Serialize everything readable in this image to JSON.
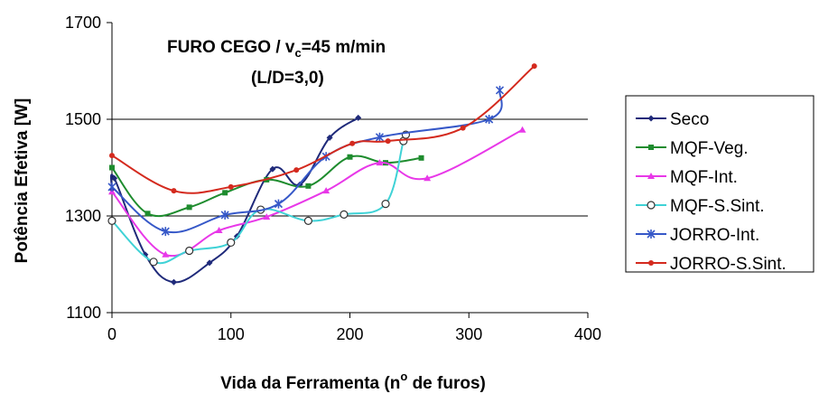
{
  "chart_data": {
    "type": "line",
    "title_line1_prefix": "FURO CEGO / v",
    "title_line1_sub": "c",
    "title_line1_suffix": "=45 m/min",
    "title_line2": "(L/D=3,0)",
    "xlabel_prefix": "Vida da Ferramenta (n",
    "xlabel_sup": "o",
    "xlabel_suffix": " de  furos)",
    "ylabel": "Potência Efetiva [W]",
    "xlim": [
      0,
      400
    ],
    "ylim": [
      1100,
      1700
    ],
    "xticks": [
      0,
      100,
      200,
      300,
      400
    ],
    "yticks": [
      1100,
      1300,
      1500,
      1700
    ],
    "grid": "horizontal",
    "legend_position": "right",
    "series": [
      {
        "name": "Seco",
        "color": "#1F2A7A",
        "marker": "diamond",
        "x": [
          0,
          2,
          28,
          52,
          82,
          105,
          135,
          158,
          183,
          207
        ],
        "y": [
          1355,
          1378,
          1220,
          1163,
          1203,
          1258,
          1397,
          1365,
          1462,
          1503
        ]
      },
      {
        "name": "MQF-Veg.",
        "color": "#1E8C2E",
        "marker": "square",
        "x": [
          0,
          30,
          65,
          95,
          130,
          165,
          200,
          230,
          260
        ],
        "y": [
          1400,
          1305,
          1318,
          1348,
          1375,
          1362,
          1422,
          1410,
          1420
        ]
      },
      {
        "name": "MQF-Int.",
        "color": "#E838E8",
        "marker": "triangle",
        "x": [
          0,
          45,
          90,
          130,
          180,
          225,
          265,
          345
        ],
        "y": [
          1350,
          1220,
          1270,
          1298,
          1352,
          1410,
          1378,
          1478
        ]
      },
      {
        "name": "MQF-S.Sint.",
        "color": "#3FD2D6",
        "marker": "circle-open",
        "x": [
          0,
          35,
          65,
          100,
          125,
          165,
          195,
          230,
          245,
          247
        ],
        "y": [
          1290,
          1205,
          1228,
          1245,
          1313,
          1290,
          1303,
          1325,
          1455,
          1468
        ]
      },
      {
        "name": "JORRO-Int.",
        "color": "#3658C8",
        "marker": "asterisk",
        "x": [
          0,
          45,
          95,
          140,
          180,
          225,
          317,
          326
        ],
        "y": [
          1360,
          1268,
          1302,
          1325,
          1423,
          1463,
          1500,
          1560
        ]
      },
      {
        "name": "JORRO-S.Sint.",
        "color": "#D42A1E",
        "marker": "circle",
        "x": [
          0,
          52,
          100,
          155,
          202,
          232,
          295,
          355
        ],
        "y": [
          1425,
          1352,
          1360,
          1395,
          1450,
          1455,
          1482,
          1610
        ]
      }
    ]
  }
}
